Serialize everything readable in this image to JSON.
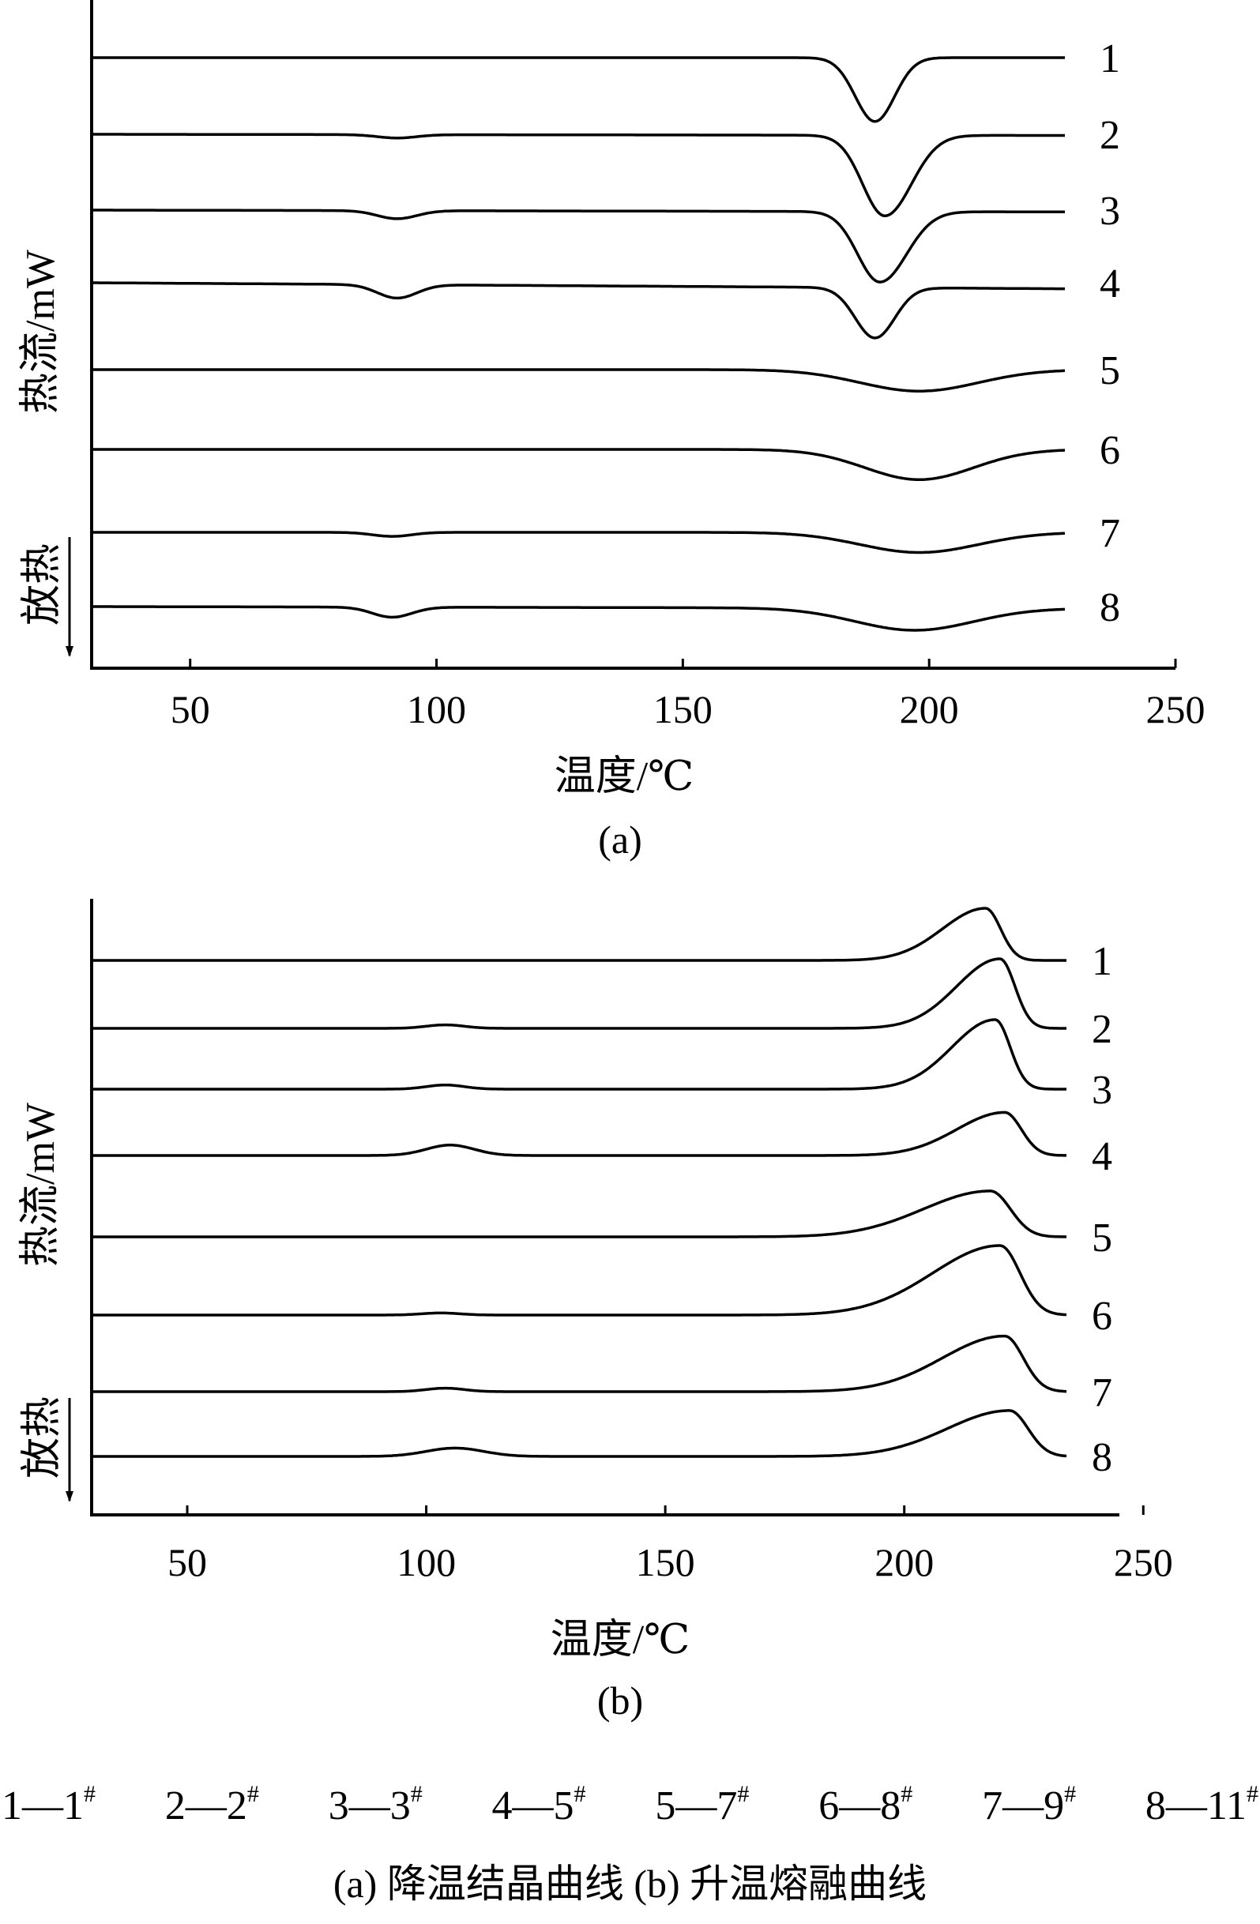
{
  "panels": [
    {
      "panel_label": "(a)",
      "ylabel": "热流/mW",
      "direction_label": "放热",
      "xlabel": "温度/℃",
      "xticks": [
        "50",
        "100",
        "150",
        "200",
        "250"
      ]
    },
    {
      "panel_label": "(b)",
      "ylabel": "热流/mW",
      "direction_label": "放热",
      "xlabel": "温度/℃",
      "xticks": [
        "50",
        "100",
        "150",
        "200",
        "250"
      ]
    }
  ],
  "legend": [
    {
      "key": "1",
      "sample": "1",
      "mark": "#"
    },
    {
      "key": "2",
      "sample": "2",
      "mark": "#"
    },
    {
      "key": "3",
      "sample": "3",
      "mark": "#"
    },
    {
      "key": "4",
      "sample": "5",
      "mark": "#"
    },
    {
      "key": "5",
      "sample": "7",
      "mark": "#"
    },
    {
      "key": "6",
      "sample": "8",
      "mark": "#"
    },
    {
      "key": "7",
      "sample": "9",
      "mark": "#"
    },
    {
      "key": "8",
      "sample": "11",
      "mark": "#"
    }
  ],
  "legend_separator": "—",
  "caption": "(a) 降温结晶曲线 (b) 升温熔融曲线",
  "chart_data": [
    {
      "type": "line",
      "title": "(a) 降温结晶曲线",
      "xlabel": "温度/℃",
      "ylabel": "热流/mW",
      "xlim": [
        30,
        250
      ],
      "xticks": [
        50,
        100,
        150,
        200,
        250
      ],
      "peak_direction": "down",
      "series": [
        {
          "name": "1",
          "peaks": [
            {
              "center": 189,
              "depth": 0.95,
              "width": 4,
              "skew": 1.0
            }
          ],
          "features": [],
          "drift": 0.0
        },
        {
          "name": "2",
          "peaks": [
            {
              "center": 191,
              "depth": 1.2,
              "width": 4.5,
              "skew": 1.2
            }
          ],
          "features": [
            {
              "center": 92,
              "depth": 0.05,
              "width": 4
            }
          ],
          "drift": 0.02
        },
        {
          "name": "3",
          "peaks": [
            {
              "center": 190,
              "depth": 1.05,
              "width": 4.5,
              "skew": 1.2
            }
          ],
          "features": [
            {
              "center": 92,
              "depth": 0.12,
              "width": 4
            }
          ],
          "drift": 0.03
        },
        {
          "name": "4",
          "peaks": [
            {
              "center": 189,
              "depth": 0.75,
              "width": 4,
              "skew": 1.0
            }
          ],
          "features": [
            {
              "center": 92,
              "depth": 0.2,
              "width": 4
            }
          ],
          "drift": 0.1
        },
        {
          "name": "5",
          "peaks": [
            {
              "center": 198,
              "depth": 0.32,
              "width": 12,
              "skew": 1.0
            }
          ],
          "features": [],
          "drift": 0.0
        },
        {
          "name": "6",
          "peaks": [
            {
              "center": 198,
              "depth": 0.45,
              "width": 11,
              "skew": 1.0
            }
          ],
          "features": [],
          "drift": 0.0
        },
        {
          "name": "7",
          "peaks": [
            {
              "center": 198,
              "depth": 0.3,
              "width": 12,
              "skew": 1.0
            }
          ],
          "features": [
            {
              "center": 91,
              "depth": 0.06,
              "width": 4
            }
          ],
          "drift": 0.0
        },
        {
          "name": "8",
          "peaks": [
            {
              "center": 197,
              "depth": 0.33,
              "width": 12,
              "skew": 1.0
            }
          ],
          "features": [
            {
              "center": 91,
              "depth": 0.15,
              "width": 4
            }
          ],
          "drift": 0.03
        }
      ]
    },
    {
      "type": "line",
      "title": "(b) 升温熔融曲线",
      "xlabel": "温度/℃",
      "ylabel": "热流/mW",
      "xlim": [
        30,
        245
      ],
      "xticks": [
        50,
        100,
        150,
        200,
        250
      ],
      "peak_direction": "up",
      "series": [
        {
          "name": "1",
          "peaks": [
            {
              "center": 217,
              "depth": 0.75,
              "width": 9,
              "skew": 0.35
            }
          ],
          "features": [],
          "drift": 0.0
        },
        {
          "name": "2",
          "peaks": [
            {
              "center": 220,
              "depth": 1.0,
              "width": 9,
              "skew": 0.35
            }
          ],
          "features": [
            {
              "center": 104,
              "depth": 0.05,
              "width": 4
            }
          ],
          "drift": 0.0
        },
        {
          "name": "3",
          "peaks": [
            {
              "center": 219,
              "depth": 1.0,
              "width": 9,
              "skew": 0.35
            }
          ],
          "features": [
            {
              "center": 104,
              "depth": 0.06,
              "width": 4
            }
          ],
          "drift": 0.0
        },
        {
          "name": "4",
          "peaks": [
            {
              "center": 221,
              "depth": 0.62,
              "width": 10,
              "skew": 0.35
            }
          ],
          "features": [
            {
              "center": 105,
              "depth": 0.15,
              "width": 5
            }
          ],
          "drift": 0.0
        },
        {
          "name": "5",
          "peaks": [
            {
              "center": 218,
              "depth": 0.66,
              "width": 14,
              "skew": 0.3
            }
          ],
          "features": [],
          "drift": 0.0
        },
        {
          "name": "6",
          "peaks": [
            {
              "center": 220,
              "depth": 1.0,
              "width": 14,
              "skew": 0.3
            }
          ],
          "features": [
            {
              "center": 103,
              "depth": 0.03,
              "width": 4
            }
          ],
          "drift": 0.0
        },
        {
          "name": "7",
          "peaks": [
            {
              "center": 221,
              "depth": 0.8,
              "width": 13,
              "skew": 0.3
            }
          ],
          "features": [
            {
              "center": 104,
              "depth": 0.05,
              "width": 4
            }
          ],
          "drift": 0.0
        },
        {
          "name": "8",
          "peaks": [
            {
              "center": 222,
              "depth": 0.66,
              "width": 13,
              "skew": 0.3
            }
          ],
          "features": [
            {
              "center": 106,
              "depth": 0.12,
              "width": 6
            }
          ],
          "drift": 0.0
        }
      ]
    }
  ]
}
